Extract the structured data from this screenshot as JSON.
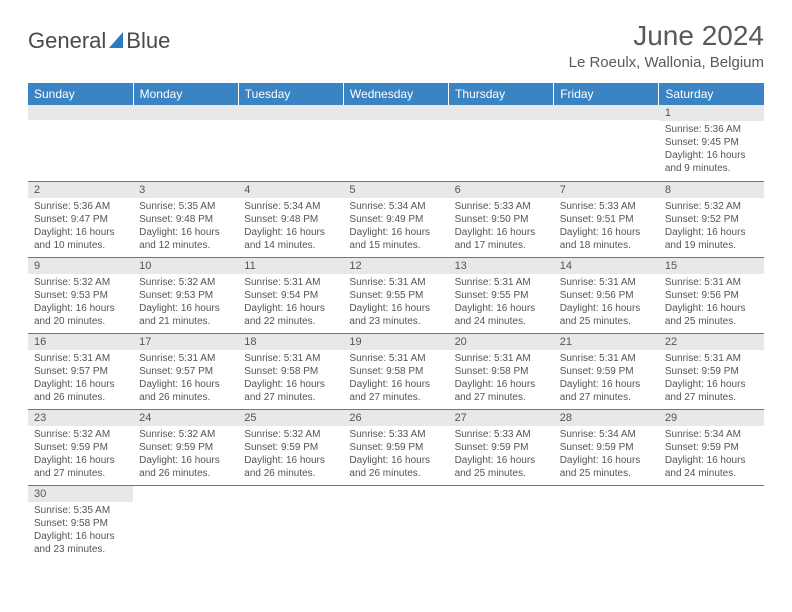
{
  "logo": {
    "text_general": "General",
    "text_blue": "Blue"
  },
  "title": "June 2024",
  "location": "Le Roeulx, Wallonia, Belgium",
  "colors": {
    "header_bg": "#3b84c4",
    "header_text": "#ffffff",
    "daynum_bg": "#e8e8e8",
    "text": "#555555",
    "rule": "#3b84c4"
  },
  "daynames": [
    "Sunday",
    "Monday",
    "Tuesday",
    "Wednesday",
    "Thursday",
    "Friday",
    "Saturday"
  ],
  "weeks": [
    [
      null,
      null,
      null,
      null,
      null,
      null,
      {
        "n": "1",
        "sr": "Sunrise: 5:36 AM",
        "ss": "Sunset: 9:45 PM",
        "dl": "Daylight: 16 hours and 9 minutes."
      }
    ],
    [
      {
        "n": "2",
        "sr": "Sunrise: 5:36 AM",
        "ss": "Sunset: 9:47 PM",
        "dl": "Daylight: 16 hours and 10 minutes."
      },
      {
        "n": "3",
        "sr": "Sunrise: 5:35 AM",
        "ss": "Sunset: 9:48 PM",
        "dl": "Daylight: 16 hours and 12 minutes."
      },
      {
        "n": "4",
        "sr": "Sunrise: 5:34 AM",
        "ss": "Sunset: 9:48 PM",
        "dl": "Daylight: 16 hours and 14 minutes."
      },
      {
        "n": "5",
        "sr": "Sunrise: 5:34 AM",
        "ss": "Sunset: 9:49 PM",
        "dl": "Daylight: 16 hours and 15 minutes."
      },
      {
        "n": "6",
        "sr": "Sunrise: 5:33 AM",
        "ss": "Sunset: 9:50 PM",
        "dl": "Daylight: 16 hours and 17 minutes."
      },
      {
        "n": "7",
        "sr": "Sunrise: 5:33 AM",
        "ss": "Sunset: 9:51 PM",
        "dl": "Daylight: 16 hours and 18 minutes."
      },
      {
        "n": "8",
        "sr": "Sunrise: 5:32 AM",
        "ss": "Sunset: 9:52 PM",
        "dl": "Daylight: 16 hours and 19 minutes."
      }
    ],
    [
      {
        "n": "9",
        "sr": "Sunrise: 5:32 AM",
        "ss": "Sunset: 9:53 PM",
        "dl": "Daylight: 16 hours and 20 minutes."
      },
      {
        "n": "10",
        "sr": "Sunrise: 5:32 AM",
        "ss": "Sunset: 9:53 PM",
        "dl": "Daylight: 16 hours and 21 minutes."
      },
      {
        "n": "11",
        "sr": "Sunrise: 5:31 AM",
        "ss": "Sunset: 9:54 PM",
        "dl": "Daylight: 16 hours and 22 minutes."
      },
      {
        "n": "12",
        "sr": "Sunrise: 5:31 AM",
        "ss": "Sunset: 9:55 PM",
        "dl": "Daylight: 16 hours and 23 minutes."
      },
      {
        "n": "13",
        "sr": "Sunrise: 5:31 AM",
        "ss": "Sunset: 9:55 PM",
        "dl": "Daylight: 16 hours and 24 minutes."
      },
      {
        "n": "14",
        "sr": "Sunrise: 5:31 AM",
        "ss": "Sunset: 9:56 PM",
        "dl": "Daylight: 16 hours and 25 minutes."
      },
      {
        "n": "15",
        "sr": "Sunrise: 5:31 AM",
        "ss": "Sunset: 9:56 PM",
        "dl": "Daylight: 16 hours and 25 minutes."
      }
    ],
    [
      {
        "n": "16",
        "sr": "Sunrise: 5:31 AM",
        "ss": "Sunset: 9:57 PM",
        "dl": "Daylight: 16 hours and 26 minutes."
      },
      {
        "n": "17",
        "sr": "Sunrise: 5:31 AM",
        "ss": "Sunset: 9:57 PM",
        "dl": "Daylight: 16 hours and 26 minutes."
      },
      {
        "n": "18",
        "sr": "Sunrise: 5:31 AM",
        "ss": "Sunset: 9:58 PM",
        "dl": "Daylight: 16 hours and 27 minutes."
      },
      {
        "n": "19",
        "sr": "Sunrise: 5:31 AM",
        "ss": "Sunset: 9:58 PM",
        "dl": "Daylight: 16 hours and 27 minutes."
      },
      {
        "n": "20",
        "sr": "Sunrise: 5:31 AM",
        "ss": "Sunset: 9:58 PM",
        "dl": "Daylight: 16 hours and 27 minutes."
      },
      {
        "n": "21",
        "sr": "Sunrise: 5:31 AM",
        "ss": "Sunset: 9:59 PM",
        "dl": "Daylight: 16 hours and 27 minutes."
      },
      {
        "n": "22",
        "sr": "Sunrise: 5:31 AM",
        "ss": "Sunset: 9:59 PM",
        "dl": "Daylight: 16 hours and 27 minutes."
      }
    ],
    [
      {
        "n": "23",
        "sr": "Sunrise: 5:32 AM",
        "ss": "Sunset: 9:59 PM",
        "dl": "Daylight: 16 hours and 27 minutes."
      },
      {
        "n": "24",
        "sr": "Sunrise: 5:32 AM",
        "ss": "Sunset: 9:59 PM",
        "dl": "Daylight: 16 hours and 26 minutes."
      },
      {
        "n": "25",
        "sr": "Sunrise: 5:32 AM",
        "ss": "Sunset: 9:59 PM",
        "dl": "Daylight: 16 hours and 26 minutes."
      },
      {
        "n": "26",
        "sr": "Sunrise: 5:33 AM",
        "ss": "Sunset: 9:59 PM",
        "dl": "Daylight: 16 hours and 26 minutes."
      },
      {
        "n": "27",
        "sr": "Sunrise: 5:33 AM",
        "ss": "Sunset: 9:59 PM",
        "dl": "Daylight: 16 hours and 25 minutes."
      },
      {
        "n": "28",
        "sr": "Sunrise: 5:34 AM",
        "ss": "Sunset: 9:59 PM",
        "dl": "Daylight: 16 hours and 25 minutes."
      },
      {
        "n": "29",
        "sr": "Sunrise: 5:34 AM",
        "ss": "Sunset: 9:59 PM",
        "dl": "Daylight: 16 hours and 24 minutes."
      }
    ],
    [
      {
        "n": "30",
        "sr": "Sunrise: 5:35 AM",
        "ss": "Sunset: 9:58 PM",
        "dl": "Daylight: 16 hours and 23 minutes."
      },
      null,
      null,
      null,
      null,
      null,
      null
    ]
  ]
}
